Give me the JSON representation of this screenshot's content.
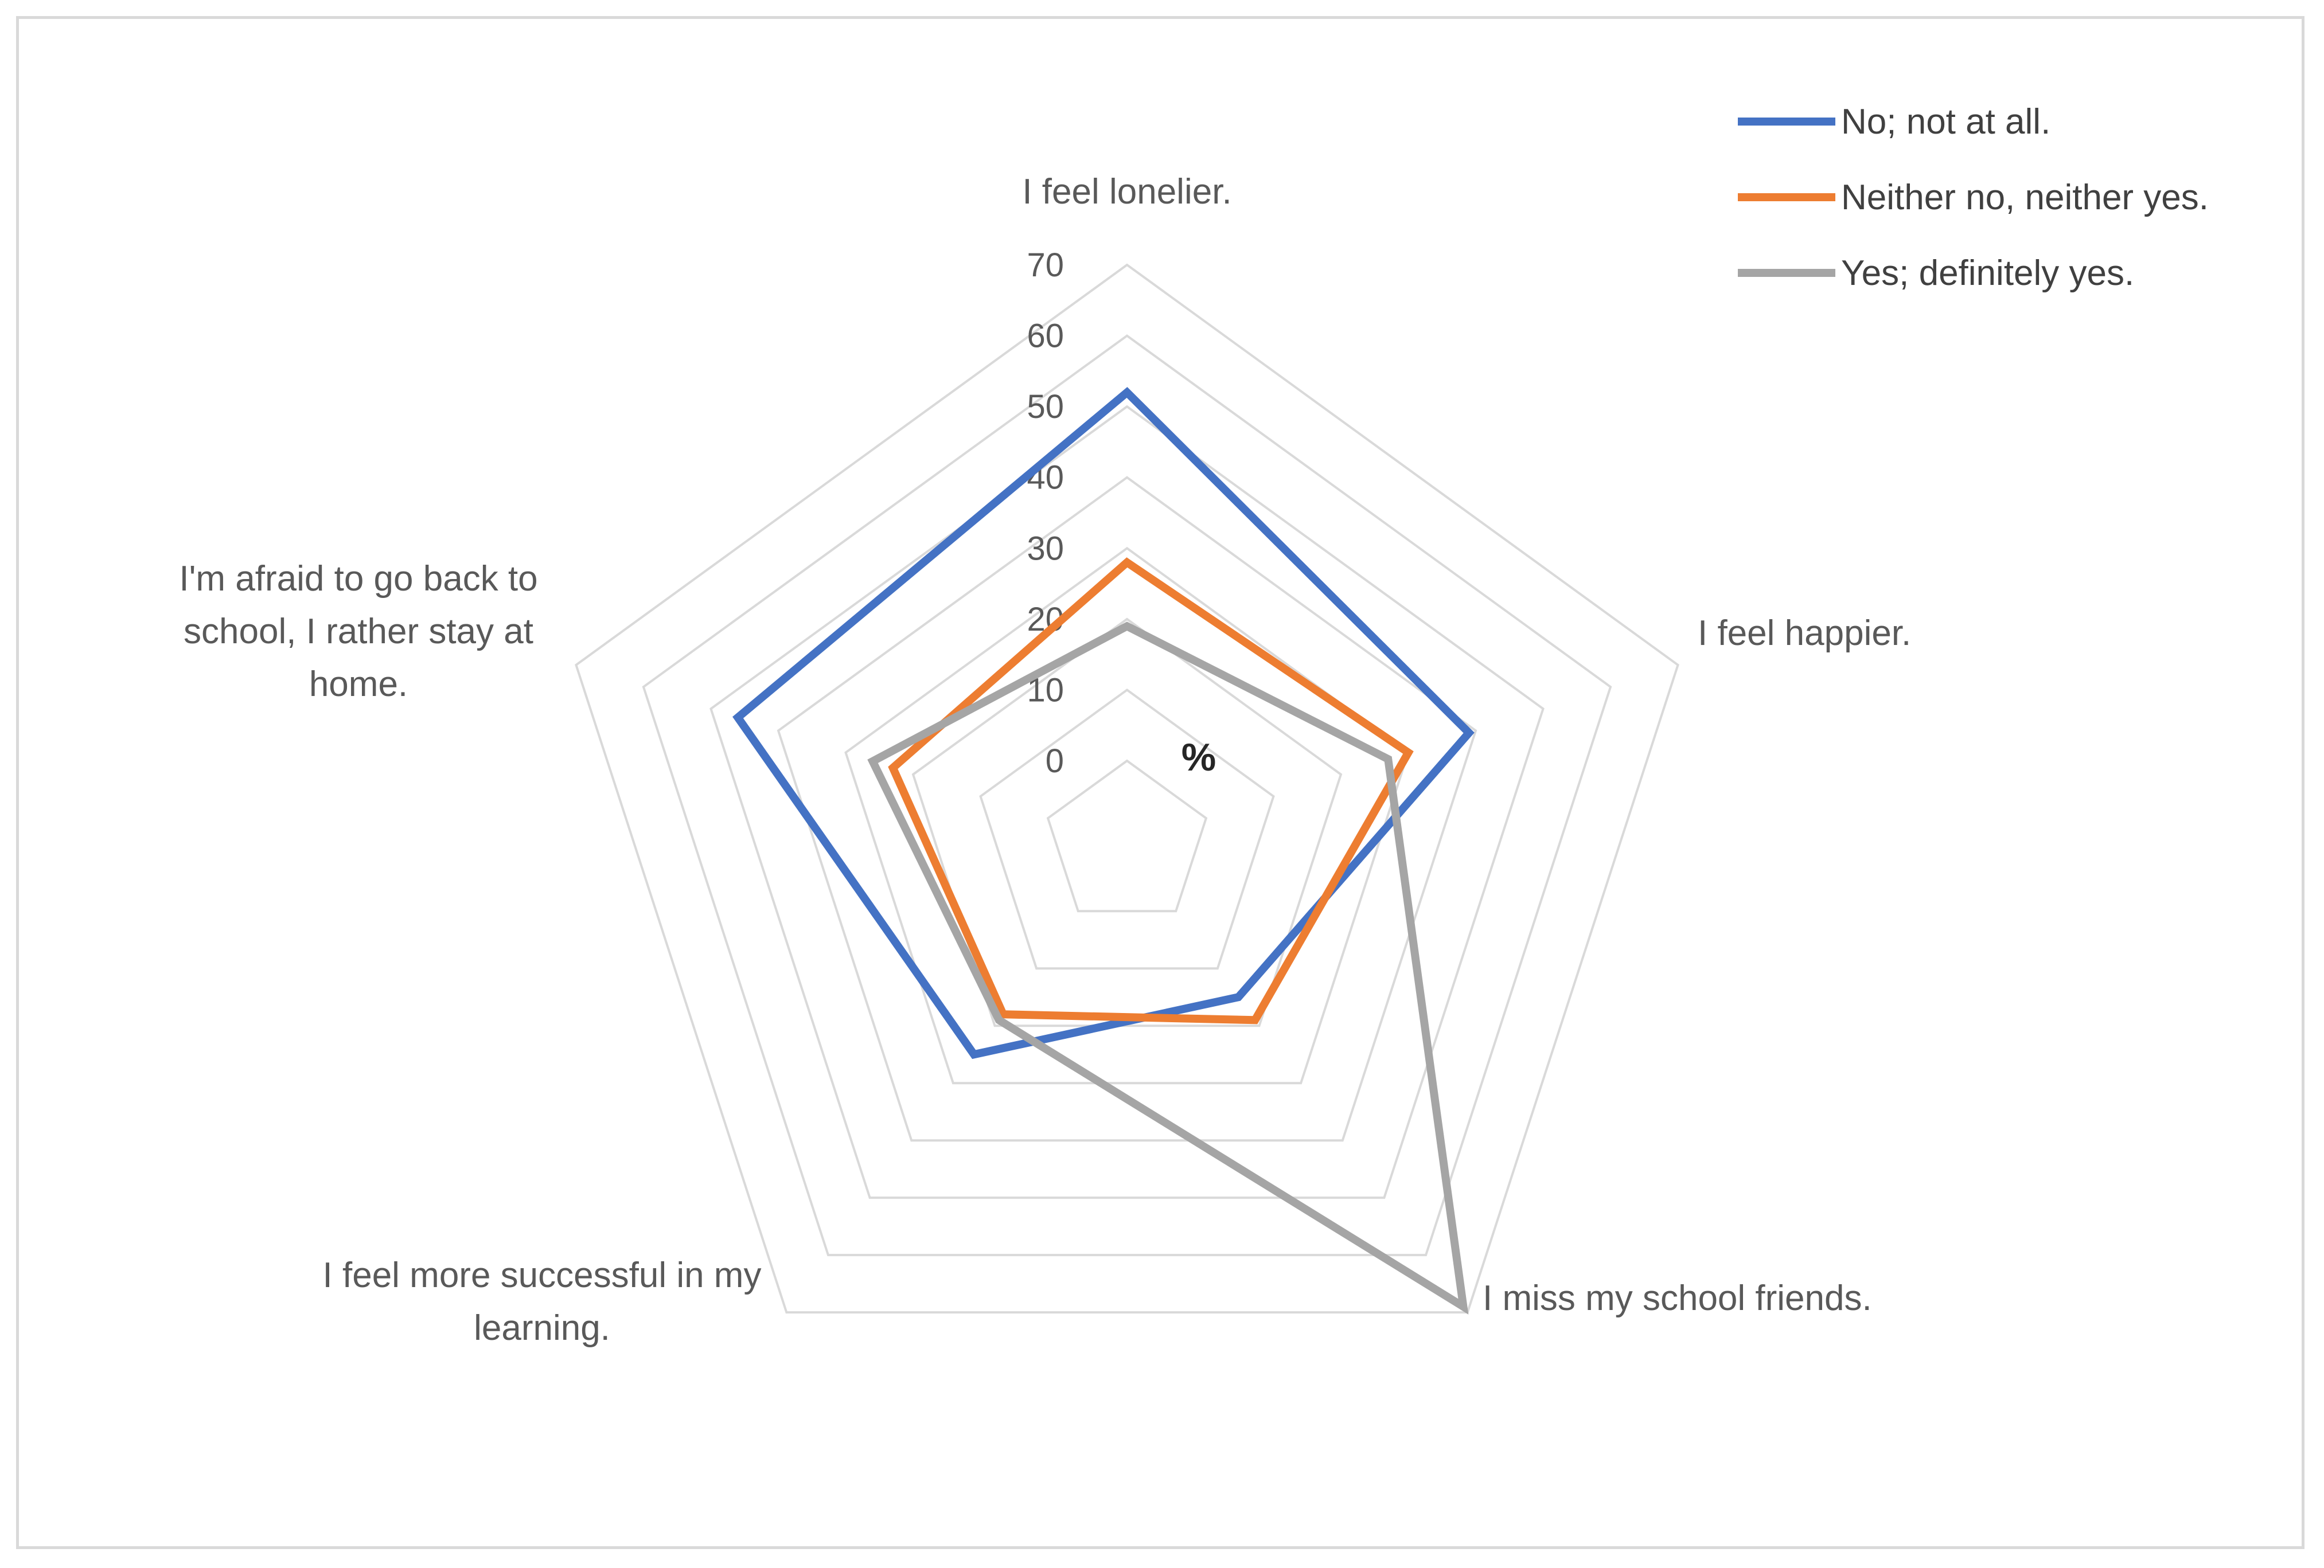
{
  "chart_data": {
    "type": "radar",
    "unit_label": "%",
    "categories": [
      "I feel lonelier.",
      "I feel happier.",
      "I miss my school friends.",
      "I feel more successful in my learning.",
      "I'm afraid to go back to school, I rather stay at home."
    ],
    "category_label_lines": [
      [
        "I feel lonelier."
      ],
      [
        "I feel happier."
      ],
      [
        "I miss my school friends."
      ],
      [
        "I feel more successful in my",
        "learning."
      ],
      [
        "I'm afraid to go back to",
        "school, I rather stay at",
        "home."
      ]
    ],
    "rlim": [
      0,
      70
    ],
    "ticks": [
      0,
      10,
      20,
      30,
      40,
      50,
      60,
      70
    ],
    "series": [
      {
        "name": "No; not at all.",
        "color": "#4472c4",
        "values": [
          52,
          39,
          15,
          25,
          46
        ]
      },
      {
        "name": "Neither no, neither yes.",
        "color": "#ed7d31",
        "values": [
          28,
          30,
          19,
          18,
          23
        ]
      },
      {
        "name": "Yes; definitely yes.",
        "color": "#a5a5a5",
        "values": [
          19,
          27,
          69,
          19,
          26
        ]
      }
    ],
    "grid": true,
    "legend_position": "top-right"
  }
}
